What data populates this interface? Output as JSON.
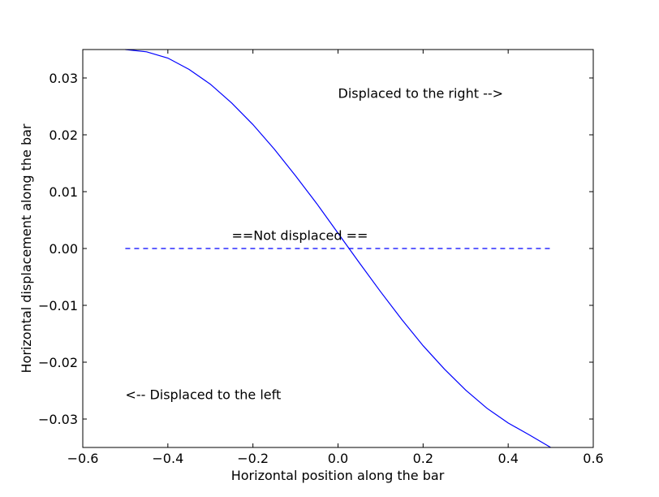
{
  "chart_data": {
    "type": "line",
    "title": "",
    "xlabel": "Horizontal position along the bar",
    "ylabel": "Horizontal displacement along the bar",
    "xlim": [
      -0.6,
      0.6
    ],
    "ylim": [
      -0.035,
      0.035
    ],
    "grid": false,
    "xticks": [
      -0.6,
      -0.4,
      -0.2,
      0.0,
      0.2,
      0.4,
      0.6
    ],
    "xtick_labels": [
      "−0.6",
      "−0.4",
      "−0.2",
      "0.0",
      "0.2",
      "0.4",
      "0.6"
    ],
    "yticks": [
      0.03,
      0.02,
      0.01,
      0.0,
      -0.01,
      -0.02,
      -0.03
    ],
    "ytick_labels": [
      "0.03",
      "0.02",
      "0.01",
      "0.00",
      "−0.01",
      "−0.02",
      "−0.03"
    ],
    "series": [
      {
        "style": "solid",
        "color": "#0000ff",
        "x": [
          -0.5,
          -0.45,
          -0.4,
          -0.35,
          -0.3,
          -0.25,
          -0.2,
          -0.15,
          -0.1,
          -0.05,
          0.0,
          0.05,
          0.1,
          0.15,
          0.2,
          0.25,
          0.3,
          0.35,
          0.4,
          0.45,
          0.5
        ],
        "y": [
          0.035,
          0.0346,
          0.0335,
          0.0315,
          0.0289,
          0.0256,
          0.0218,
          0.0175,
          0.0128,
          0.0079,
          0.0027,
          -0.0025,
          -0.0076,
          -0.0125,
          -0.0171,
          -0.0212,
          -0.0249,
          -0.0281,
          -0.0307,
          -0.0328,
          -0.035
        ]
      },
      {
        "style": "dashed",
        "color": "#0000ff",
        "x": [
          -0.5,
          0.5
        ],
        "y": [
          0.0,
          0.0
        ]
      }
    ],
    "annotations": [
      {
        "text": "Displaced to the right -->",
        "x": 0.0,
        "y": 0.0265
      },
      {
        "text": "==Not displaced ==",
        "x": -0.25,
        "y": 0.0015
      },
      {
        "text": "<-- Displaced to the left",
        "x": -0.5,
        "y": -0.0265
      }
    ]
  }
}
